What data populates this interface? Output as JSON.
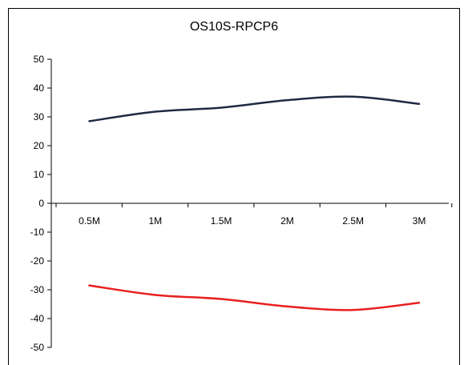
{
  "chart_data": {
    "type": "line",
    "title": "OS10S-RPCP6",
    "xlabel": "",
    "ylabel": "",
    "categories": [
      "0.5M",
      "1M",
      "1.5M",
      "2M",
      "2.5M",
      "3M"
    ],
    "ylim": [
      -50,
      50
    ],
    "yticks": [
      50,
      40,
      30,
      20,
      10,
      0,
      -10,
      -20,
      -30,
      -40,
      -50
    ],
    "grid": false,
    "legend": "none",
    "series": [
      {
        "values": [
          28.5,
          31.8,
          33.2,
          35.8,
          37.0,
          34.5
        ],
        "color": "#1f2a44"
      },
      {
        "values": [
          -28.5,
          -31.8,
          -33.2,
          -35.8,
          -37.0,
          -34.5
        ],
        "color": "#e8201f"
      }
    ]
  }
}
